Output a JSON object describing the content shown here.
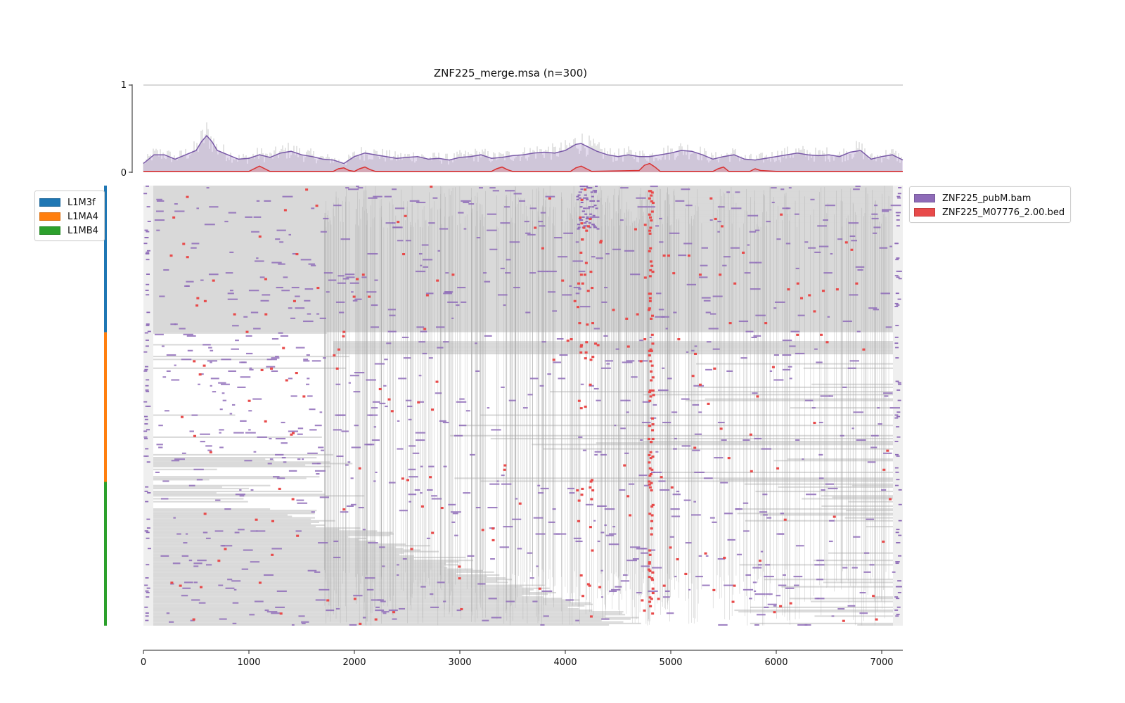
{
  "chart_data": [
    {
      "type": "area",
      "title": "ZNF225_merge.msa (n=300)",
      "ylim": [
        0,
        1
      ],
      "yticks": [
        "0",
        "1"
      ],
      "xlim": [
        0,
        7200
      ],
      "series": [
        {
          "name": "ZNF225_pubM.bam",
          "color": "#8e6bb8",
          "x": [
            0,
            100,
            200,
            300,
            400,
            500,
            550,
            600,
            650,
            700,
            800,
            900,
            1000,
            1100,
            1200,
            1300,
            1400,
            1500,
            1600,
            1700,
            1800,
            1900,
            2000,
            2100,
            2200,
            2300,
            2400,
            2500,
            2600,
            2700,
            2800,
            2900,
            3000,
            3100,
            3200,
            3300,
            3400,
            3500,
            3600,
            3700,
            3800,
            3900,
            4000,
            4100,
            4150,
            4200,
            4300,
            4400,
            4500,
            4600,
            4700,
            4800,
            4900,
            5000,
            5100,
            5200,
            5300,
            5400,
            5500,
            5600,
            5700,
            5800,
            5900,
            6000,
            6100,
            6200,
            6300,
            6400,
            6500,
            6600,
            6700,
            6800,
            6900,
            7000,
            7100,
            7200
          ],
          "y": [
            0.1,
            0.2,
            0.2,
            0.15,
            0.2,
            0.25,
            0.35,
            0.42,
            0.35,
            0.25,
            0.2,
            0.15,
            0.16,
            0.2,
            0.17,
            0.22,
            0.24,
            0.2,
            0.18,
            0.15,
            0.14,
            0.1,
            0.18,
            0.22,
            0.2,
            0.18,
            0.16,
            0.17,
            0.18,
            0.15,
            0.16,
            0.14,
            0.17,
            0.18,
            0.2,
            0.16,
            0.17,
            0.19,
            0.2,
            0.22,
            0.23,
            0.22,
            0.25,
            0.32,
            0.33,
            0.3,
            0.24,
            0.2,
            0.18,
            0.2,
            0.18,
            0.18,
            0.2,
            0.22,
            0.25,
            0.24,
            0.2,
            0.15,
            0.18,
            0.2,
            0.15,
            0.14,
            0.16,
            0.18,
            0.2,
            0.22,
            0.2,
            0.19,
            0.2,
            0.18,
            0.23,
            0.25,
            0.15,
            0.18,
            0.2,
            0.14
          ]
        },
        {
          "name": "ZNF225_M07776_2.00.bed",
          "color": "#e84a4a",
          "x": [
            0,
            1000,
            1050,
            1100,
            1150,
            1200,
            1800,
            1850,
            1900,
            1950,
            2000,
            2050,
            2100,
            2150,
            2200,
            3300,
            3350,
            3400,
            3450,
            3500,
            4050,
            4100,
            4150,
            4200,
            4250,
            4700,
            4750,
            4800,
            4850,
            4900,
            5400,
            5450,
            5500,
            5550,
            5750,
            5800,
            5850,
            6000,
            7200
          ],
          "y": [
            0.01,
            0.01,
            0.04,
            0.07,
            0.04,
            0.01,
            0.01,
            0.04,
            0.05,
            0.02,
            0.01,
            0.04,
            0.06,
            0.03,
            0.01,
            0.01,
            0.04,
            0.06,
            0.03,
            0.01,
            0.01,
            0.05,
            0.07,
            0.04,
            0.01,
            0.02,
            0.08,
            0.1,
            0.06,
            0.01,
            0.01,
            0.04,
            0.06,
            0.01,
            0.01,
            0.04,
            0.02,
            0.01,
            0.01
          ]
        }
      ]
    },
    {
      "type": "heatmap",
      "xlim": [
        0,
        7200
      ],
      "xticks": [
        "0",
        "1000",
        "2000",
        "3000",
        "4000",
        "5000",
        "6000",
        "7000"
      ],
      "n_rows": 300,
      "colors": {
        "gap": "#d9d9d9",
        "sequence": "#ffffff",
        "mismatch": "#a8a8a8",
        "signal": "#8e6bb8",
        "motif": "#e84a4a",
        "margin": "#efefef"
      },
      "groups": [
        {
          "name": "L1M3f",
          "color": "#1f77b4",
          "rows": 100
        },
        {
          "name": "L1MA4",
          "color": "#ff7f0e",
          "rows": 102
        },
        {
          "name": "L1MB4",
          "color": "#2ca02c",
          "rows": 98
        }
      ],
      "legend_tracks": [
        {
          "name": "ZNF225_pubM.bam",
          "color": "#8e6bb8"
        },
        {
          "name": "ZNF225_M07776_2.00.bed",
          "color": "#e84a4a"
        }
      ]
    }
  ]
}
